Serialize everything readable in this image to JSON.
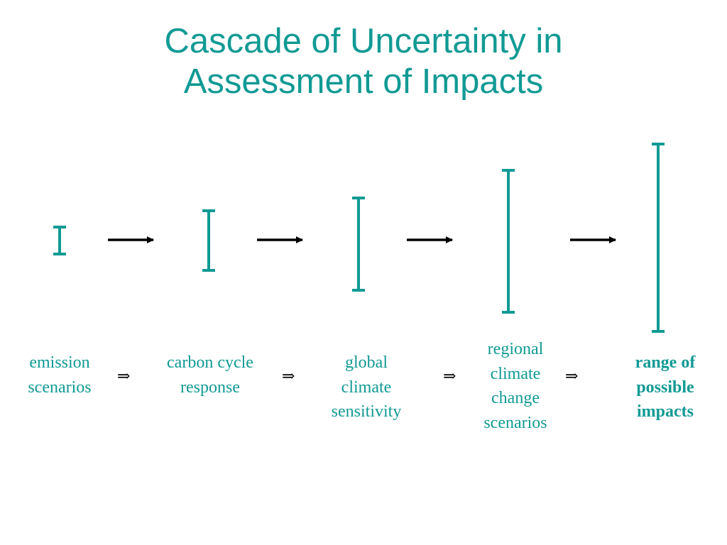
{
  "title": {
    "line1": "Cascade of Uncertainty in",
    "line2": "Assessment of Impacts"
  },
  "colors": {
    "accent": "#119A94",
    "arrow": "#000000"
  },
  "stages": [
    {
      "lines": [
        "emission",
        "scenarios"
      ]
    },
    {
      "lines": [
        "carbon cycle",
        "response"
      ]
    },
    {
      "lines": [
        "global",
        "climate",
        "sensitivity"
      ]
    },
    {
      "lines": [
        "regional",
        "climate",
        "change",
        "scenarios"
      ]
    },
    {
      "lines": [
        "range of",
        "possible",
        "impacts"
      ]
    }
  ],
  "implies_symbol": "⇒"
}
